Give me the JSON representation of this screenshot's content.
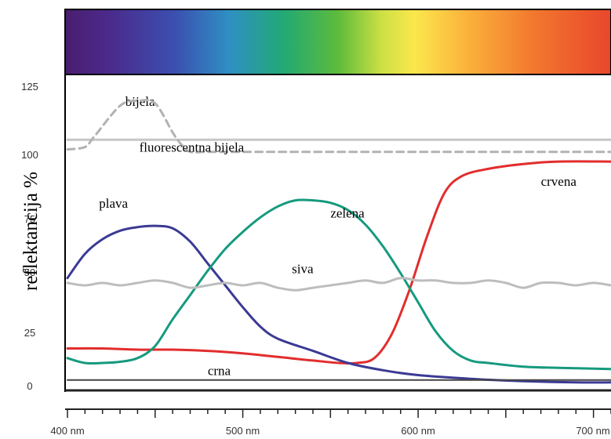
{
  "chart_data": {
    "type": "line",
    "ylabel": "reflektancija  %",
    "y_ticks": [
      "0",
      "25",
      "50",
      "75",
      "100",
      "125"
    ],
    "x_tick_labels": [
      {
        "x": 400,
        "label": "400 nm"
      },
      {
        "x": 500,
        "label": "500 nm"
      },
      {
        "x": 600,
        "label": "600 nm"
      },
      {
        "x": 700,
        "label": "700 nm"
      }
    ],
    "xlim": [
      400,
      710
    ],
    "ylim": [
      0,
      125
    ],
    "spectrum_bar": true,
    "series": [
      {
        "name": "bijela",
        "label_at": [
          433,
          116
        ],
        "color": "#c6c6c6",
        "dash": false,
        "x": [
          400,
          710
        ],
        "values": [
          102,
          102
        ]
      },
      {
        "name": "fluorescentna bijela",
        "label_at": [
          441,
          97
        ],
        "color": "#b2b2b2",
        "dash": true,
        "x": [
          400,
          410,
          415,
          430,
          440,
          450,
          460,
          465,
          470,
          480,
          500,
          550,
          600,
          650,
          710
        ],
        "values": [
          98,
          99,
          103,
          116,
          118,
          117,
          105,
          100,
          97,
          97,
          97,
          97,
          97,
          97,
          97
        ]
      },
      {
        "name": "crvena",
        "label_at": [
          670,
          83
        ],
        "color": "#e22d2d",
        "dash": false,
        "x": [
          400,
          420,
          440,
          460,
          480,
          500,
          520,
          540,
          555,
          565,
          575,
          585,
          595,
          605,
          615,
          625,
          640,
          660,
          680,
          710
        ],
        "values": [
          16,
          16,
          15.5,
          15.5,
          15,
          14,
          12.5,
          11,
          10,
          10,
          12,
          22,
          40,
          62,
          80,
          87,
          90,
          92,
          93,
          93
        ]
      },
      {
        "name": "plava",
        "label_at": [
          418,
          74
        ],
        "color": "#3b3a94",
        "dash": false,
        "x": [
          400,
          410,
          420,
          430,
          440,
          450,
          460,
          470,
          480,
          490,
          500,
          510,
          520,
          540,
          560,
          580,
          600,
          630,
          660,
          690,
          710
        ],
        "values": [
          45,
          55,
          61,
          64.5,
          66,
          66.5,
          65.5,
          60,
          51,
          42,
          33,
          25,
          20,
          15,
          10,
          7,
          5,
          3.5,
          2.5,
          2,
          2
        ]
      },
      {
        "name": "zelena",
        "label_at": [
          550,
          70
        ],
        "color": "#159a7e",
        "dash": false,
        "x": [
          400,
          410,
          420,
          430,
          440,
          450,
          460,
          470,
          480,
          490,
          500,
          510,
          520,
          530,
          540,
          550,
          560,
          570,
          580,
          590,
          600,
          610,
          620,
          630,
          640,
          660,
          680,
          710
        ],
        "values": [
          12,
          10,
          10,
          10.5,
          12,
          17,
          28,
          38,
          48,
          57,
          64,
          70,
          74.5,
          77,
          77,
          76,
          73,
          67,
          58,
          47,
          35,
          23,
          15,
          11,
          10,
          8.5,
          8,
          7.5
        ]
      },
      {
        "name": "siva",
        "label_at": [
          528,
          47
        ],
        "color": "#bdbdbd",
        "dash": false,
        "x": [
          400,
          410,
          420,
          430,
          440,
          450,
          460,
          470,
          480,
          490,
          500,
          510,
          520,
          530,
          540,
          550,
          560,
          570,
          580,
          590,
          600,
          610,
          620,
          630,
          640,
          650,
          660,
          670,
          680,
          690,
          700,
          710
        ],
        "values": [
          43,
          42,
          43,
          42,
          43,
          44,
          43,
          41,
          42,
          43,
          42,
          43,
          41,
          40,
          41,
          42,
          43,
          44,
          43,
          45,
          44,
          44,
          43,
          43,
          44,
          43,
          41,
          43,
          43,
          42,
          43,
          42
        ]
      },
      {
        "name": "crna",
        "label_at": [
          480,
          5
        ],
        "color": "#444444",
        "dash": false,
        "x": [
          400,
          710
        ],
        "values": [
          3,
          3
        ]
      }
    ]
  }
}
